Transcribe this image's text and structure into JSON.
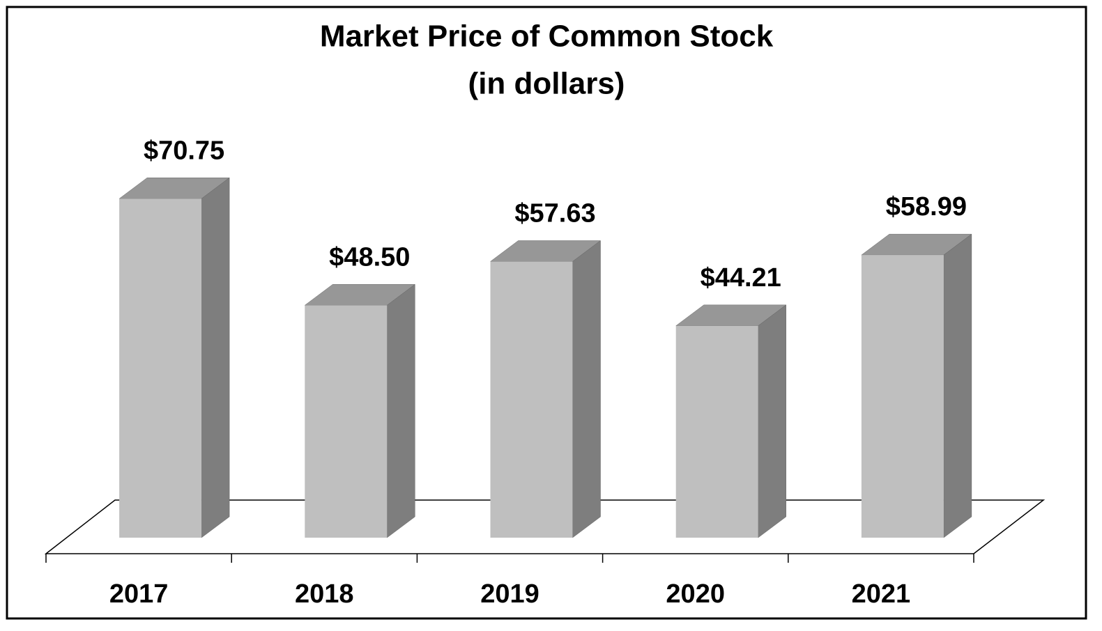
{
  "chart_data": {
    "type": "bar3d",
    "title": "Market Price of Common Stock",
    "subtitle": "(in dollars)",
    "categories": [
      "2017",
      "2018",
      "2019",
      "2020",
      "2021"
    ],
    "values": [
      70.75,
      48.5,
      57.63,
      44.21,
      58.99
    ],
    "value_labels": [
      "$70.75",
      "$48.50",
      "$57.63",
      "$44.21",
      "$58.99"
    ],
    "color": "#bfbfbf"
  }
}
